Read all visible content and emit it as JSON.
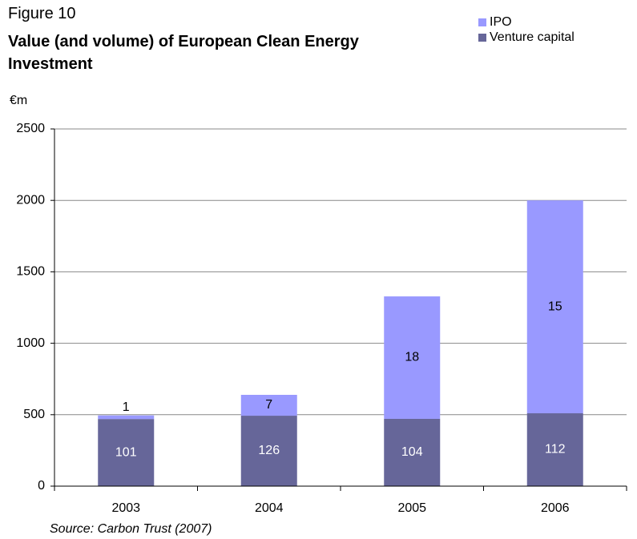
{
  "chart_data": {
    "type": "stacked_bar",
    "figure_label": "Figure 10",
    "title": "Value (and volume) of European Clean Energy Investment",
    "y_axis_label": "€m",
    "source": "Source: Carbon Trust (2007)",
    "categories": [
      "2003",
      "2004",
      "2005",
      "2006"
    ],
    "series": [
      {
        "name": "Venture capital",
        "color": "#666699",
        "values": [
          470,
          493,
          471,
          510
        ],
        "volumes": [
          "101",
          "126",
          "104",
          "112"
        ]
      },
      {
        "name": "IPO",
        "color": "#9999ff",
        "values": [
          25,
          146,
          857,
          1490
        ],
        "volumes": [
          "1",
          "7",
          "18",
          "15"
        ]
      }
    ],
    "ylim": [
      0,
      2500
    ],
    "yticks": [
      0,
      500,
      1000,
      1500,
      2000,
      2500
    ],
    "grid": true,
    "legend": "top-right"
  }
}
